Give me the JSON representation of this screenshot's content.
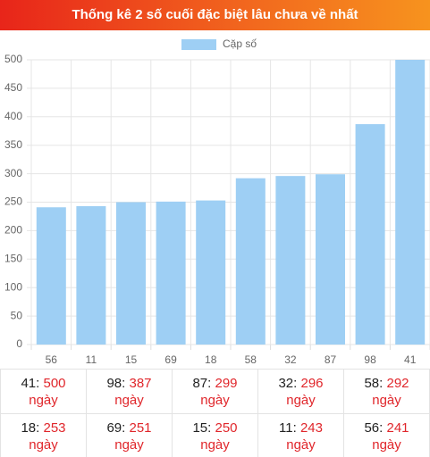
{
  "header": {
    "title": "Thống kê 2 số cuối đặc biệt lâu chưa về nhất"
  },
  "chart_data": {
    "type": "bar",
    "legend": "Cặp số",
    "color": "#9ecff4",
    "categories": [
      "56",
      "11",
      "15",
      "69",
      "18",
      "58",
      "32",
      "87",
      "98",
      "41"
    ],
    "values": [
      241,
      243,
      250,
      251,
      253,
      292,
      296,
      299,
      387,
      500
    ],
    "ylim": [
      0,
      500
    ],
    "yticks": [
      0,
      50,
      100,
      150,
      200,
      250,
      300,
      350,
      400,
      450,
      500
    ],
    "grid": true
  },
  "table": {
    "rows": [
      [
        {
          "pair": "41:",
          "days": "500",
          "unit": "ngày"
        },
        {
          "pair": "98:",
          "days": "387",
          "unit": "ngày"
        },
        {
          "pair": "87:",
          "days": "299",
          "unit": "ngày"
        },
        {
          "pair": "32:",
          "days": "296",
          "unit": "ngày"
        },
        {
          "pair": "58:",
          "days": "292",
          "unit": "ngày"
        }
      ],
      [
        {
          "pair": "18:",
          "days": "253",
          "unit": "ngày"
        },
        {
          "pair": "69:",
          "days": "251",
          "unit": "ngày"
        },
        {
          "pair": "15:",
          "days": "250",
          "unit": "ngày"
        },
        {
          "pair": "11:",
          "days": "243",
          "unit": "ngày"
        },
        {
          "pair": "56:",
          "days": "241",
          "unit": "ngày"
        }
      ]
    ]
  }
}
